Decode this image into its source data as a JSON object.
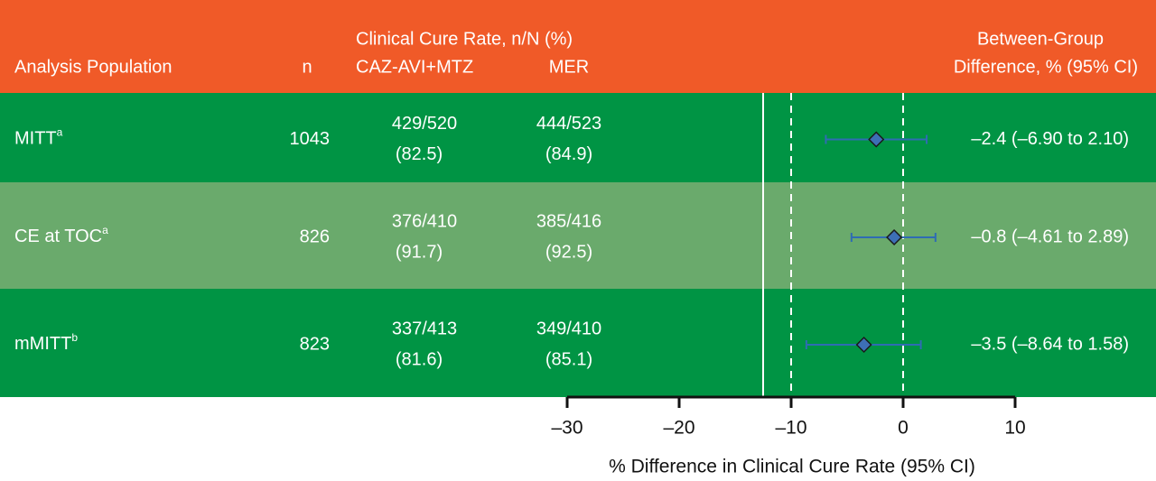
{
  "chart_data": {
    "type": "forest",
    "columns": {
      "population": "Analysis Population",
      "n": "n",
      "cure_group": "Clinical Cure Rate, n/N (%)",
      "arm1": "CAZ-AVI+MTZ",
      "arm2": "MER",
      "difference": [
        "Between-Group",
        "Difference, % (95% CI)"
      ]
    },
    "rows": [
      {
        "population": "MITT",
        "footnote": "a",
        "n": 1043,
        "arm1": [
          "429/520",
          "(82.5)"
        ],
        "arm2": [
          "444/523",
          "(84.9)"
        ],
        "estimate": -2.4,
        "lower": -6.9,
        "upper": 2.1,
        "label": "–2.4 (–6.90 to 2.10)"
      },
      {
        "population": "CE at TOC",
        "footnote": "a",
        "n": 826,
        "arm1": [
          "376/410",
          "(91.7)"
        ],
        "arm2": [
          "385/416",
          "(92.5)"
        ],
        "estimate": -0.8,
        "lower": -4.61,
        "upper": 2.89,
        "label": "–0.8 (–4.61 to 2.89)"
      },
      {
        "population": "mMITT",
        "footnote": "b",
        "n": 823,
        "arm1": [
          "337/413",
          "(81.6)"
        ],
        "arm2": [
          "349/410",
          "(85.1)"
        ],
        "estimate": -3.5,
        "lower": -8.64,
        "upper": 1.58,
        "label": "–3.5 (–8.64 to 1.58)"
      }
    ],
    "xlim": [
      -30,
      10
    ],
    "xticks": [
      {
        "value": -30,
        "label": "–30"
      },
      {
        "value": -20,
        "label": "–20"
      },
      {
        "value": -10,
        "label": "–10"
      },
      0,
      10
    ],
    "margin": -12.5,
    "dashed_lines": [
      -10,
      0
    ],
    "xlabel": "% Difference in Clinical Cure Rate (95% CI)",
    "header_color": "#f05a28",
    "row_colors": [
      "#009444",
      "#6aaa6c",
      "#009444"
    ],
    "marker_color": "#3d6fb6",
    "whisker_color": "#2f6cb3"
  }
}
